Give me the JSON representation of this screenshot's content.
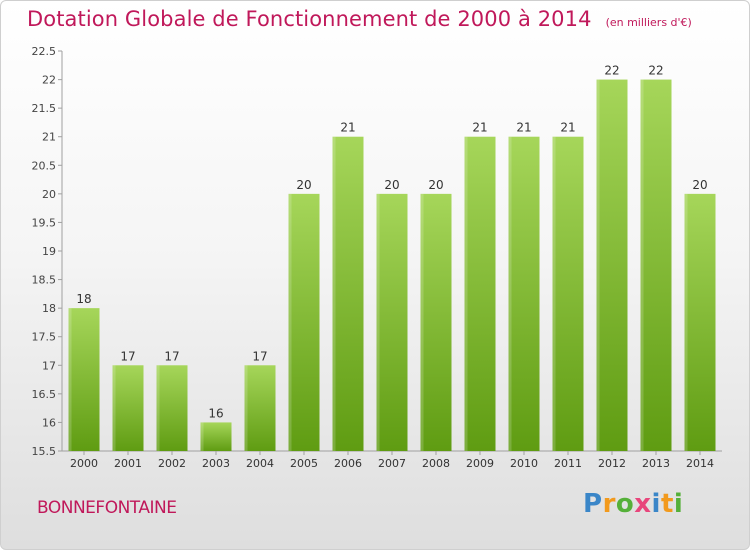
{
  "title": "Dotation Globale de Fonctionnement de 2000 à 2014",
  "subtitle": "(en milliers d'€)",
  "commune": "BONNEFONTAINE",
  "logo_text": "Proxiti",
  "colors": {
    "accent": "#c0185a",
    "bar_top": "#a6d65a",
    "bar_bottom": "#5f9c12"
  },
  "chart_data": {
    "type": "bar",
    "title": "Dotation Globale de Fonctionnement de 2000 à 2014",
    "subtitle": "(en milliers d'€)",
    "categories": [
      "2000",
      "2001",
      "2002",
      "2003",
      "2004",
      "2005",
      "2006",
      "2007",
      "2008",
      "2009",
      "2010",
      "2011",
      "2012",
      "2013",
      "2014"
    ],
    "values": [
      18,
      17,
      17,
      16,
      17,
      20,
      21,
      20,
      20,
      21,
      21,
      21,
      22,
      22,
      20
    ],
    "labels": [
      "18",
      "17",
      "17",
      "16",
      "17",
      "20",
      "21",
      "20",
      "20",
      "21",
      "21",
      "21",
      "22",
      "22",
      "20"
    ],
    "ylim": [
      15.5,
      22.5
    ],
    "yticks": [
      "15.5",
      "16",
      "16.5",
      "17",
      "17.5",
      "18",
      "18.5",
      "19",
      "19.5",
      "20",
      "20.5",
      "21",
      "21.5",
      "22",
      "22.5"
    ],
    "xlabel": "",
    "ylabel": "",
    "grid": false,
    "legend": "none"
  }
}
